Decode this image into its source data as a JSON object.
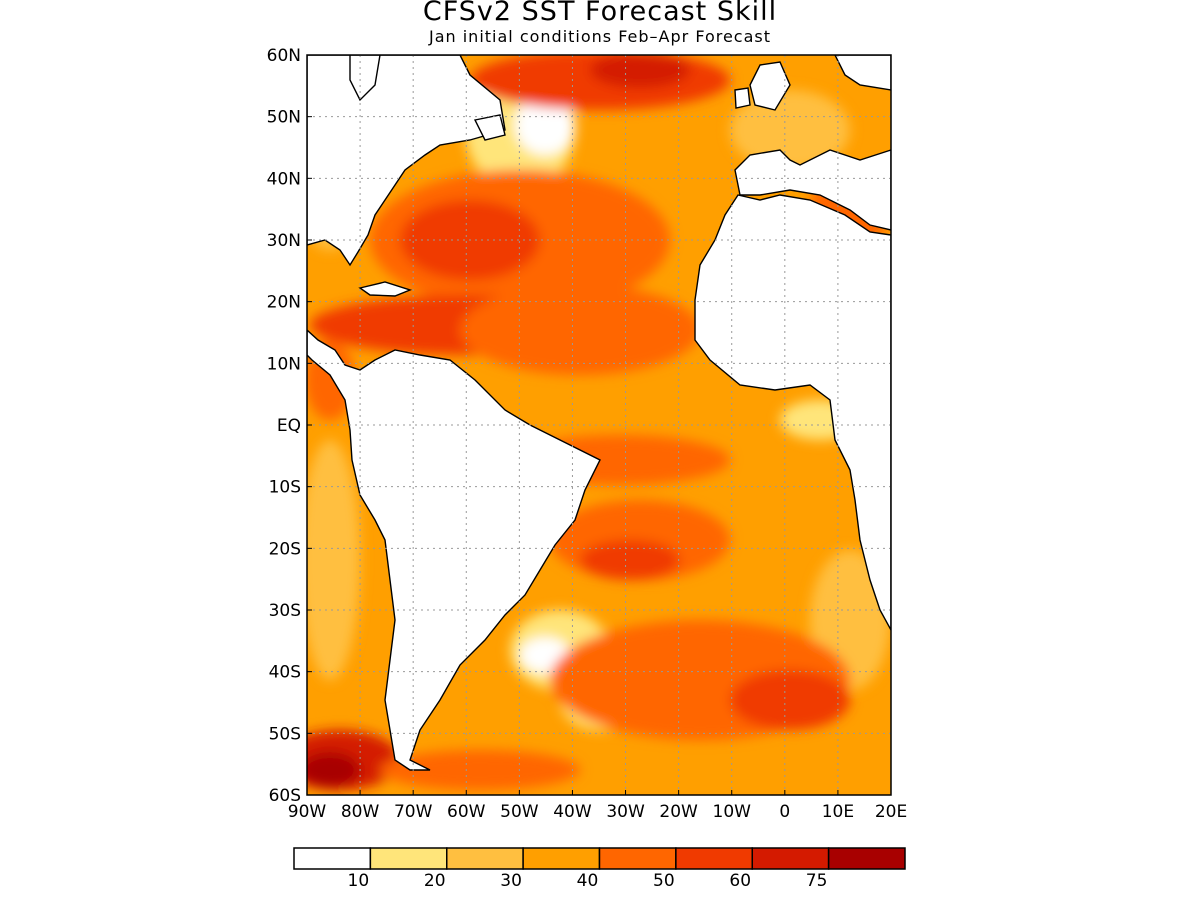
{
  "header": {
    "title": "CFSv2 SST Forecast Skill",
    "subtitle": "Jan initial conditions  Feb–Apr Forecast"
  },
  "axes": {
    "lat_labels": [
      "60N",
      "50N",
      "40N",
      "30N",
      "20N",
      "10N",
      "EQ",
      "10S",
      "20S",
      "30S",
      "40S",
      "50S",
      "60S"
    ],
    "lon_labels": [
      "90W",
      "80W",
      "70W",
      "60W",
      "50W",
      "40W",
      "30W",
      "20W",
      "10W",
      "0",
      "10E",
      "20E"
    ],
    "lat_range": [
      -60,
      60
    ],
    "lon_range": [
      -90,
      20
    ],
    "grid": true
  },
  "colorbar": {
    "levels": [
      "10",
      "20",
      "30",
      "40",
      "50",
      "60",
      "75"
    ],
    "colors": [
      "#ffffff",
      "#ffe57a",
      "#ffbf40",
      "#ff9f00",
      "#ff6600",
      "#f03a00",
      "#d41a00",
      "#a80000"
    ]
  }
}
